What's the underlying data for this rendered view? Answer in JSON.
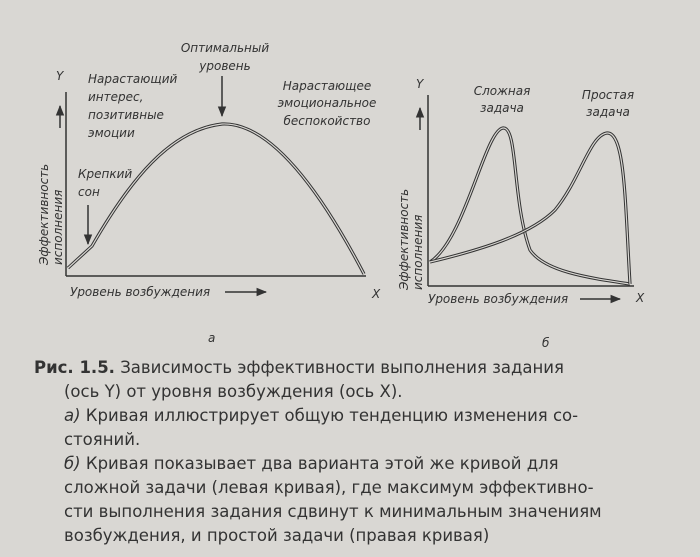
{
  "figure": {
    "panel_a": {
      "y_axis": "Y",
      "x_axis": "X",
      "y_label": [
        "Эффективность",
        "исполнения"
      ],
      "x_label": "Уровень возбуждения",
      "optimal": [
        "Оптимальный",
        "уровень"
      ],
      "rising_interest": [
        "Нарастающий",
        "интерес,",
        "позитивные",
        "эмоции"
      ],
      "rising_anxiety": [
        "Нарастающее",
        "эмоциональное",
        "беспокойство"
      ],
      "deep_sleep": [
        "Крепкий",
        "сон"
      ],
      "sublabel": "а"
    },
    "panel_b": {
      "y_axis": "Y",
      "x_axis": "X",
      "y_label": [
        "Эффективность",
        "исполнения"
      ],
      "x_label": "Уровень возбуждения",
      "complex_task": [
        "Сложная",
        "задача"
      ],
      "simple_task": [
        "Простая",
        "задача"
      ],
      "sublabel": "б"
    }
  },
  "caption": {
    "number": "Рис. 1.5.",
    "title_lines": [
      " Зависимость эффективности выполнения задания",
      "(ось Y) от уровня возбуждения (ось X)."
    ],
    "note_a": {
      "marker": "а)",
      "lines": [
        " Кривая иллюстрирует общую тенденцию изменения со-",
        "стояний."
      ]
    },
    "note_b": {
      "marker": "б)",
      "lines": [
        " Кривая показывает два варианта этой же кривой для",
        "сложной задачи (левая кривая), где максимум эффективно-",
        "сти выполнения задания сдвинут к минимальным значениям",
        "возбуждения, и простой задачи (правая кривая)"
      ]
    }
  }
}
